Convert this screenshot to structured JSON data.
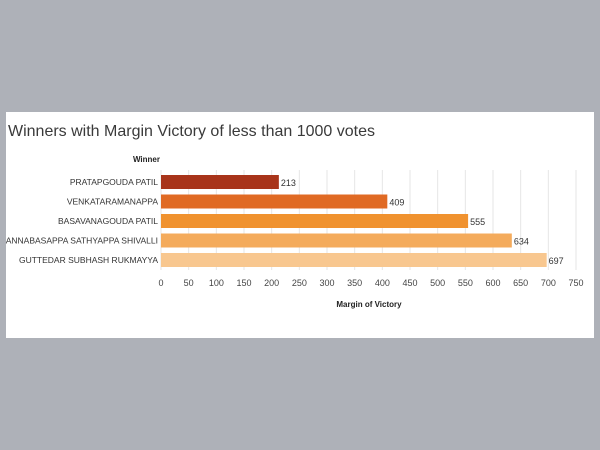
{
  "chart_data": {
    "type": "bar",
    "orientation": "horizontal",
    "title": "Winners with Margin Victory  of less than 1000 votes",
    "category_header": "Winner",
    "xlabel": "Margin of Victory",
    "categories": [
      "PRATAPGOUDA PATIL",
      "VENKATARAMANAPPA",
      "BASAVANAGOUDA PATIL",
      "CHANNABASAPPA SATHYAPPA SHIVALLI",
      "GUTTEDAR SUBHASH RUKMAYYA"
    ],
    "values": [
      213,
      409,
      555,
      634,
      697
    ],
    "value_labels": [
      "213",
      "409",
      "555",
      "634",
      "697"
    ],
    "colors": [
      "#a8341a",
      "#e06a24",
      "#f0922f",
      "#f4ab5c",
      "#f8c78f"
    ],
    "xlim": [
      0,
      750
    ],
    "xticks": [
      "0",
      "50",
      "100",
      "150",
      "200",
      "250",
      "300",
      "350",
      "400",
      "450",
      "500",
      "550",
      "600",
      "650",
      "700",
      "750"
    ],
    "grid": "vertical",
    "legend": "none"
  }
}
